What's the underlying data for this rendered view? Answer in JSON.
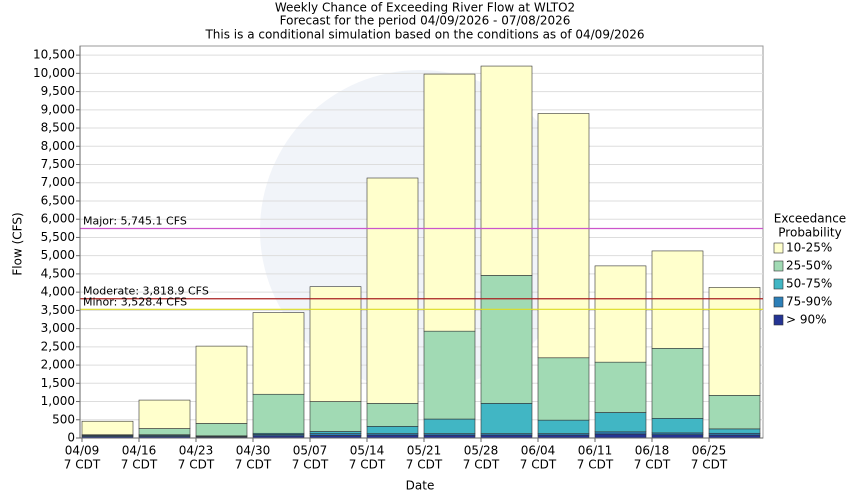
{
  "chart_data": {
    "type": "stacked_bar",
    "title": "Weekly Chance of Exceeding River Flow at WLTO2",
    "subtitle": "Forecast for the period 04/09/2026 - 07/08/2026",
    "note": "This is a conditional simulation based on the conditions as of 04/09/2026",
    "x_label": "Date",
    "y_label": "Flow (CFS)",
    "categories": [
      [
        "04/09",
        "7 CDT"
      ],
      [
        "04/16",
        "7 CDT"
      ],
      [
        "04/23",
        "7 CDT"
      ],
      [
        "04/30",
        "7 CDT"
      ],
      [
        "05/07",
        "7 CDT"
      ],
      [
        "05/14",
        "7 CDT"
      ],
      [
        "05/21",
        "7 CDT"
      ],
      [
        "05/28",
        "7 CDT"
      ],
      [
        "06/04",
        "7 CDT"
      ],
      [
        "06/11",
        "7 CDT"
      ],
      [
        "06/18",
        "7 CDT"
      ],
      [
        "06/25",
        "7 CDT"
      ]
    ],
    "series": [
      {
        "name": "> 90%",
        "color": "#253494",
        "values": [
          40,
          40,
          30,
          60,
          70,
          80,
          80,
          80,
          80,
          110,
          90,
          80
        ]
      },
      {
        "name": "75-90%",
        "color": "#2c7fb8",
        "values": [
          30,
          30,
          20,
          40,
          50,
          40,
          40,
          40,
          40,
          60,
          50,
          50
        ]
      },
      {
        "name": "50-75%",
        "color": "#41b6c4",
        "values": [
          10,
          20,
          10,
          30,
          60,
          200,
          400,
          830,
          370,
          530,
          400,
          120
        ]
      },
      {
        "name": "25-50%",
        "color": "#a1dab4",
        "values": [
          10,
          170,
          340,
          1070,
          820,
          630,
          2410,
          3510,
          1710,
          1380,
          1920,
          920
        ]
      },
      {
        "name": "10-25%",
        "color": "#ffffcc",
        "values": [
          370,
          780,
          2120,
          2240,
          3150,
          6180,
          7050,
          5740,
          6700,
          2640,
          2670,
          2960
        ]
      }
    ],
    "legend_title": [
      "Exceedance",
      "Probability"
    ],
    "thresholds": [
      {
        "value": 5745.1,
        "label": "Major: 5,745.1 CFS",
        "color": "#cc55cc"
      },
      {
        "value": 3818.9,
        "label": "Moderate: 3,818.9 CFS",
        "color": "#aa2222"
      },
      {
        "value": 3528.4,
        "label": "Minor: 3,528.4 CFS",
        "color": "#dddd22"
      }
    ],
    "ylim": [
      0,
      10750
    ],
    "yticks": [
      0,
      {
        "value": 500,
        "label": "500"
      },
      {
        "value": 1000,
        "label": "1,000"
      },
      {
        "value": 1500,
        "label": "1,500"
      },
      {
        "value": 2000,
        "label": "2,000"
      },
      {
        "value": 2500,
        "label": "2,500"
      },
      {
        "value": 3000,
        "label": "3,000"
      },
      {
        "value": 3500,
        "label": "3,500"
      },
      {
        "value": 4000,
        "label": "4,000"
      },
      {
        "value": 4500,
        "label": "4,500"
      },
      {
        "value": 5000,
        "label": "5,000"
      },
      {
        "value": 5500,
        "label": "5,500"
      },
      {
        "value": 6000,
        "label": "6,000"
      },
      {
        "value": 6500,
        "label": "6,500"
      },
      {
        "value": 7000,
        "label": "7,000"
      },
      {
        "value": 7500,
        "label": "7,500"
      },
      {
        "value": 8000,
        "label": "8,000"
      },
      {
        "value": 8500,
        "label": "8,500"
      },
      {
        "value": 9000,
        "label": "9,000"
      },
      {
        "value": 9500,
        "label": "9,500"
      },
      {
        "value": 10000,
        "label": "10,000"
      },
      {
        "value": 10500,
        "label": "10,500"
      }
    ],
    "grid": true
  }
}
